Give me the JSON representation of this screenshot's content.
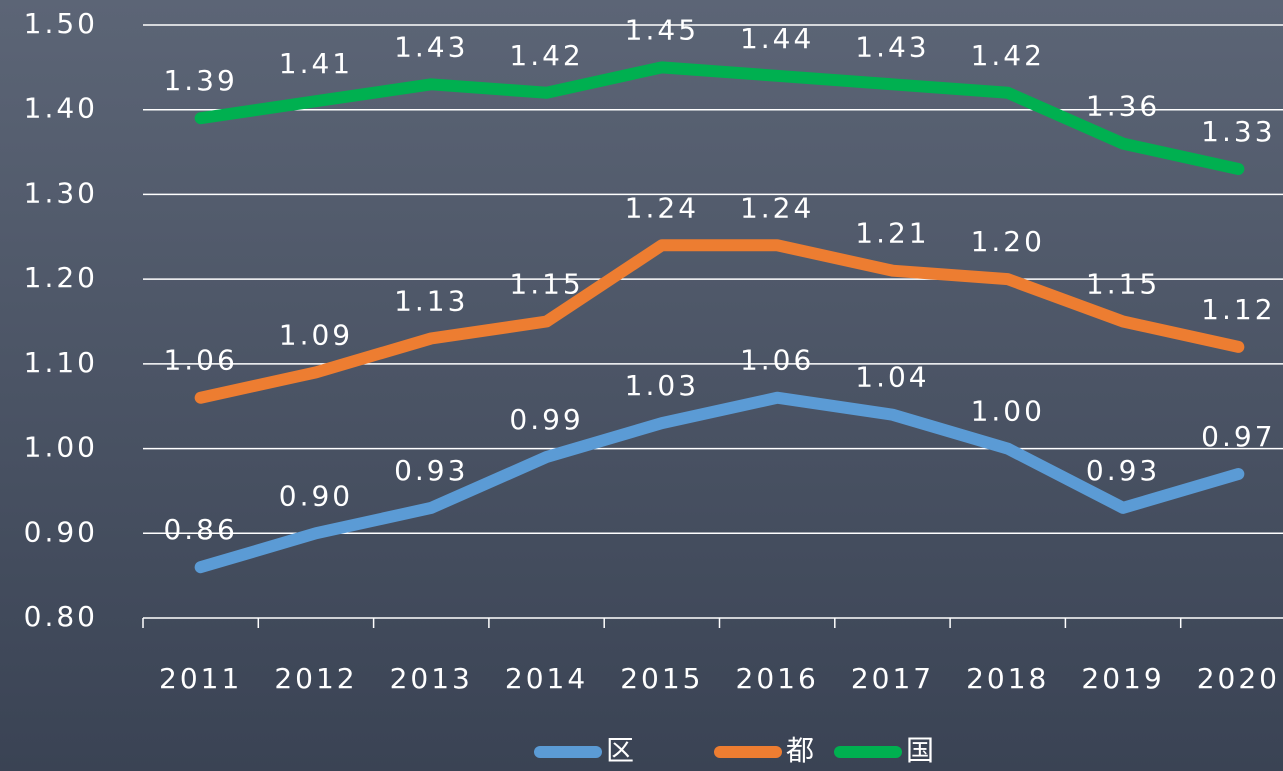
{
  "chart_data": {
    "type": "line",
    "categories": [
      "2011",
      "2012",
      "2013",
      "2014",
      "2015",
      "2016",
      "2017",
      "2018",
      "2019",
      "2020"
    ],
    "series": [
      {
        "name": "区",
        "color": "#5b9bd5",
        "values": [
          0.86,
          0.9,
          0.93,
          0.99,
          1.03,
          1.06,
          1.04,
          1.0,
          0.93,
          0.97
        ],
        "value_labels": [
          "0.86",
          "0.90",
          "0.93",
          "0.99",
          "1.03",
          "1.06",
          "1.04",
          "1.00",
          "0.93",
          "0.97"
        ]
      },
      {
        "name": "都",
        "color": "#ed7d31",
        "values": [
          1.06,
          1.09,
          1.13,
          1.15,
          1.24,
          1.24,
          1.21,
          1.2,
          1.15,
          1.12
        ],
        "value_labels": [
          "1.06",
          "1.09",
          "1.13",
          "1.15",
          "1.24",
          "1.24",
          "1.21",
          "1.20",
          "1.15",
          "1.12"
        ]
      },
      {
        "name": "国",
        "color": "#00b050",
        "values": [
          1.39,
          1.41,
          1.43,
          1.42,
          1.45,
          1.44,
          1.43,
          1.42,
          1.36,
          1.33
        ],
        "value_labels": [
          "1.39",
          "1.41",
          "1.43",
          "1.42",
          "1.45",
          "1.44",
          "1.43",
          "1.42",
          "1.36",
          "1.33"
        ]
      }
    ],
    "ylim": [
      0.8,
      1.5
    ],
    "yticks": [
      {
        "value": 0.8,
        "label": "0.80"
      },
      {
        "value": 0.9,
        "label": "0.90"
      },
      {
        "value": 1.0,
        "label": "1.00"
      },
      {
        "value": 1.1,
        "label": "1.10"
      },
      {
        "value": 1.2,
        "label": "1.20"
      },
      {
        "value": 1.3,
        "label": "1.30"
      },
      {
        "value": 1.4,
        "label": "1.40"
      },
      {
        "value": 1.5,
        "label": "1.50"
      }
    ],
    "grid": true,
    "legend": "bottom"
  }
}
